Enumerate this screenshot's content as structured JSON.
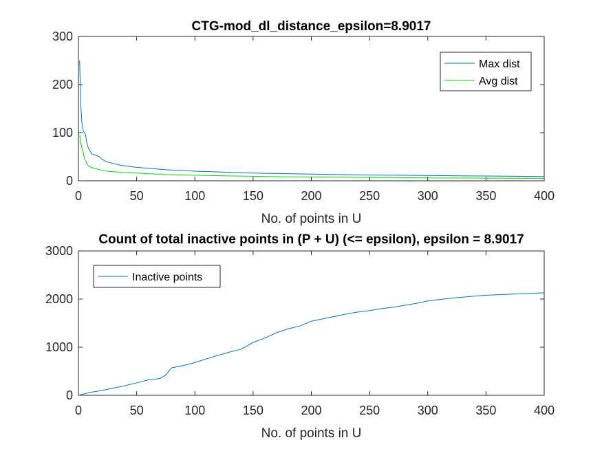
{
  "chart_data": [
    {
      "type": "line",
      "title": "CTG-mod_dl_distance_epsilon=8.9017",
      "xlabel": "No. of points in U",
      "ylabel": "",
      "xlim": [
        0,
        400
      ],
      "ylim": [
        0,
        300
      ],
      "xticks": [
        0,
        50,
        100,
        150,
        200,
        250,
        300,
        350,
        400
      ],
      "yticks": [
        0,
        100,
        200,
        300
      ],
      "legend_position": "top-right",
      "grid": false,
      "series": [
        {
          "name": "Max dist",
          "color": "#0072BD",
          "x": [
            1,
            2,
            3,
            4,
            5,
            6,
            7,
            8,
            9,
            10,
            12,
            15,
            18,
            20,
            25,
            30,
            35,
            40,
            50,
            60,
            75,
            100,
            125,
            150,
            175,
            200,
            225,
            250,
            275,
            300,
            325,
            350,
            375,
            400
          ],
          "y": [
            250,
            160,
            118,
            105,
            100,
            97,
            82,
            72,
            66,
            62,
            55,
            53,
            50,
            45,
            39,
            36,
            33,
            31,
            28,
            26,
            23,
            20,
            18,
            16,
            15,
            14,
            13,
            12,
            11.5,
            11,
            10.5,
            10,
            9.5,
            9
          ]
        },
        {
          "name": "Avg dist",
          "color": "#00DD00",
          "x": [
            1,
            2,
            3,
            4,
            5,
            6,
            7,
            8,
            9,
            10,
            12,
            15,
            18,
            20,
            25,
            30,
            35,
            40,
            50,
            60,
            75,
            100,
            125,
            150,
            175,
            200,
            225,
            250,
            275,
            300,
            325,
            350,
            375,
            400
          ],
          "y": [
            95,
            80,
            68,
            60,
            48,
            42,
            38,
            33,
            30,
            29,
            27,
            25,
            23,
            22,
            20,
            19,
            18,
            17,
            16,
            15,
            13,
            11.5,
            10.5,
            9.5,
            8.5,
            8,
            7.5,
            7,
            6.5,
            6,
            5.8,
            5.5,
            5.2,
            5
          ]
        }
      ]
    },
    {
      "type": "line",
      "title": "Count of total inactive points in (P + U) (<= epsilon), epsilon = 8.9017",
      "xlabel": "No. of points in U",
      "ylabel": "",
      "xlim": [
        0,
        400
      ],
      "ylim": [
        0,
        3000
      ],
      "xticks": [
        0,
        50,
        100,
        150,
        200,
        250,
        300,
        350,
        400
      ],
      "yticks": [
        0,
        1000,
        2000,
        3000
      ],
      "legend_position": "top-left",
      "grid": false,
      "series": [
        {
          "name": "Inactive points",
          "color": "#0072BD",
          "x": [
            0,
            5,
            10,
            20,
            30,
            40,
            50,
            60,
            70,
            75,
            80,
            90,
            100,
            110,
            120,
            130,
            140,
            145,
            150,
            160,
            170,
            180,
            190,
            200,
            210,
            220,
            230,
            240,
            250,
            260,
            270,
            280,
            290,
            300,
            310,
            320,
            330,
            340,
            350,
            360,
            370,
            380,
            390,
            400
          ],
          "y": [
            0,
            30,
            60,
            100,
            150,
            200,
            260,
            320,
            350,
            420,
            570,
            620,
            680,
            760,
            830,
            900,
            960,
            1030,
            1100,
            1190,
            1300,
            1380,
            1440,
            1540,
            1590,
            1640,
            1690,
            1730,
            1760,
            1800,
            1830,
            1870,
            1910,
            1960,
            1990,
            2020,
            2040,
            2060,
            2080,
            2090,
            2100,
            2110,
            2120,
            2130
          ]
        }
      ]
    }
  ]
}
